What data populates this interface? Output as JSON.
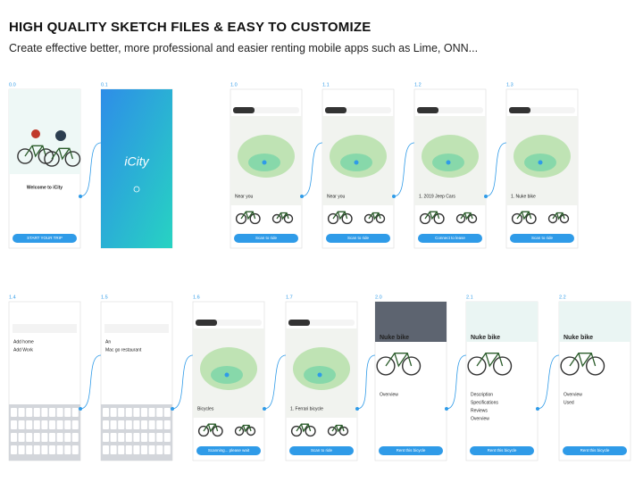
{
  "header": {
    "title": "HIGH QUALITY SKETCH FILES & EASY TO CUSTOMIZE",
    "subtitle": "Create effective better, more professional and easier renting mobile apps such as Lime, ONN..."
  },
  "screens": [
    {
      "label": "0.0",
      "kind": "welcome",
      "texts": [
        "Welcome to iCity"
      ],
      "button": "START YOUR TRIP"
    },
    {
      "label": "0.1",
      "kind": "splash",
      "texts": [
        "iCity"
      ]
    },
    {
      "label": "1.0",
      "kind": "map",
      "texts": [
        "Near you"
      ],
      "button": "Scan to ride"
    },
    {
      "label": "1.1",
      "kind": "map",
      "texts": [
        "Near you"
      ],
      "button": "Scan to ride"
    },
    {
      "label": "1.2",
      "kind": "map",
      "texts": [
        "1. 2019 Jeep Cars"
      ],
      "button": "Connect to lease"
    },
    {
      "label": "1.3",
      "kind": "map",
      "texts": [
        "1. Nuke bike"
      ],
      "button": "Scan to ride"
    },
    {
      "label": "1.4",
      "kind": "search",
      "texts": [
        "Add home",
        "Add Work"
      ]
    },
    {
      "label": "1.5",
      "kind": "search",
      "texts": [
        "An",
        "Mac go restaurant"
      ]
    },
    {
      "label": "1.6",
      "kind": "map",
      "texts": [
        "Bicycles"
      ],
      "button": "Scanning... please wait"
    },
    {
      "label": "1.7",
      "kind": "map",
      "texts": [
        "1. Ferrari bicycle"
      ],
      "button": "Scan to ride"
    },
    {
      "label": "2.0",
      "kind": "detail",
      "texts": [
        "Nuke bike",
        "Overview"
      ],
      "button": "Rent this bicycle"
    },
    {
      "label": "2.1",
      "kind": "detail",
      "texts": [
        "Nuke bike",
        "Description",
        "Specifications",
        "Reviews",
        "Overview"
      ],
      "button": "Rent this bicycle"
    },
    {
      "label": "2.2",
      "kind": "detail2",
      "texts": [
        "Nuke bike",
        "Overview",
        "Used"
      ],
      "button": "Rent this bicycle"
    }
  ]
}
